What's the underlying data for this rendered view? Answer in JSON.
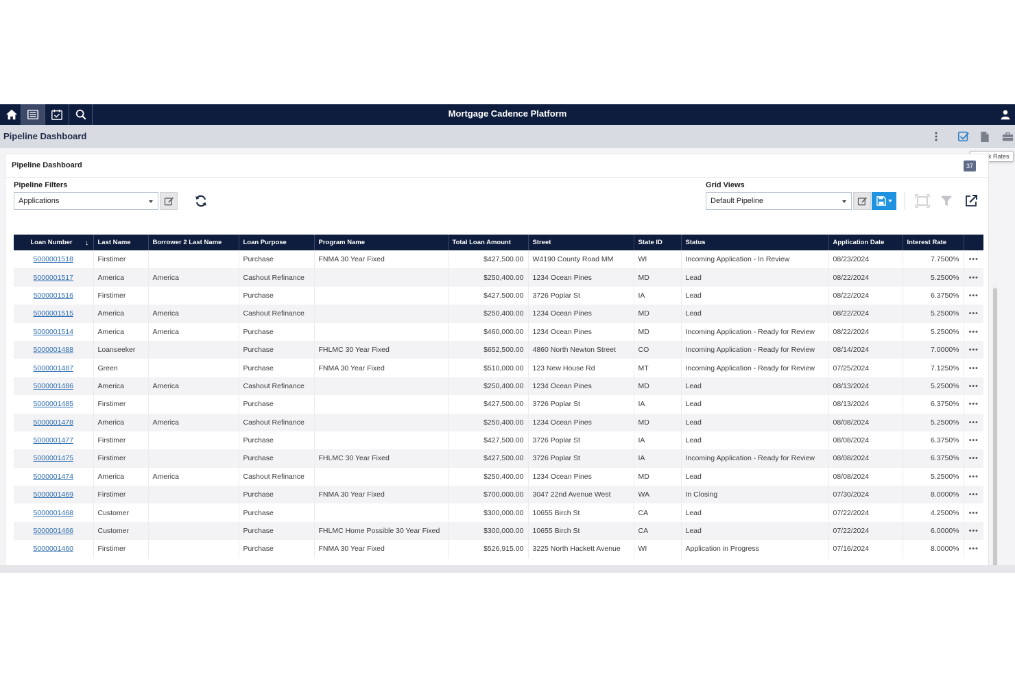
{
  "app": {
    "title": "Mortgage Cadence Platform",
    "nav_icons": [
      "home-icon",
      "list-icon",
      "calendar-check-icon",
      "search-icon"
    ]
  },
  "subbar": {
    "title": "Pipeline Dashboard",
    "icons": [
      "more-vertical-icon",
      "check-rates-icon",
      "document-icon",
      "briefcase-icon"
    ],
    "tooltip": "Check Rates"
  },
  "panel": {
    "title": "Pipeline Dashboard",
    "badge": "37"
  },
  "filters": {
    "label": "Pipeline Filters",
    "selected": "Applications"
  },
  "grid_views": {
    "label": "Grid Views",
    "selected": "Default Pipeline"
  },
  "table": {
    "columns": [
      "Loan Number",
      "Last Name",
      "Borrower 2 Last Name",
      "Loan Purpose",
      "Program Name",
      "Total Loan Amount",
      "Street",
      "State ID",
      "Status",
      "Application Date",
      "Interest Rate"
    ],
    "rows": [
      [
        "5000001518",
        "Firstimer",
        "",
        "Purchase",
        "FNMA 30 Year Fixed",
        "$427,500.00",
        "W4190 County Road MM",
        "WI",
        "Incoming Application - In Review",
        "08/23/2024",
        "7.7500%"
      ],
      [
        "5000001517",
        "America",
        "America",
        "Cashout Refinance",
        "",
        "$250,400.00",
        "1234 Ocean Pines",
        "MD",
        "Lead",
        "08/22/2024",
        "5.2500%"
      ],
      [
        "5000001516",
        "Firstimer",
        "",
        "Purchase",
        "",
        "$427,500.00",
        "3726 Poplar St",
        "IA",
        "Lead",
        "08/22/2024",
        "6.3750%"
      ],
      [
        "5000001515",
        "America",
        "America",
        "Cashout Refinance",
        "",
        "$250,400.00",
        "1234 Ocean Pines",
        "MD",
        "Lead",
        "08/22/2024",
        "5.2500%"
      ],
      [
        "5000001514",
        "America",
        "America",
        "Purchase",
        "",
        "$460,000.00",
        "1234 Ocean Pines",
        "MD",
        "Incoming Application - Ready for Review",
        "08/22/2024",
        "5.2500%"
      ],
      [
        "5000001488",
        "Loanseeker",
        "",
        "Purchase",
        "FHLMC 30 Year Fixed",
        "$652,500.00",
        "4860 North Newton Street",
        "CO",
        "Incoming Application - Ready for Review",
        "08/14/2024",
        "7.0000%"
      ],
      [
        "5000001487",
        "Green",
        "",
        "Purchase",
        "FNMA 30 Year Fixed",
        "$510,000.00",
        "123 New House Rd",
        "MT",
        "Incoming Application - Ready for Review",
        "07/25/2024",
        "7.1250%"
      ],
      [
        "5000001486",
        "America",
        "America",
        "Cashout Refinance",
        "",
        "$250,400.00",
        "1234 Ocean Pines",
        "MD",
        "Lead",
        "08/13/2024",
        "5.2500%"
      ],
      [
        "5000001485",
        "Firstimer",
        "",
        "Purchase",
        "",
        "$427,500.00",
        "3726 Poplar St",
        "IA",
        "Lead",
        "08/13/2024",
        "6.3750%"
      ],
      [
        "5000001478",
        "America",
        "America",
        "Cashout Refinance",
        "",
        "$250,400.00",
        "1234 Ocean Pines",
        "MD",
        "Lead",
        "08/08/2024",
        "5.2500%"
      ],
      [
        "5000001477",
        "Firstimer",
        "",
        "Purchase",
        "",
        "$427,500.00",
        "3726 Poplar St",
        "IA",
        "Lead",
        "08/08/2024",
        "6.3750%"
      ],
      [
        "5000001475",
        "Firstimer",
        "",
        "Purchase",
        "FHLMC 30 Year Fixed",
        "$427,500.00",
        "3726 Poplar St",
        "IA",
        "Incoming Application - Ready for Review",
        "08/08/2024",
        "6.3750%"
      ],
      [
        "5000001474",
        "America",
        "America",
        "Cashout Refinance",
        "",
        "$250,400.00",
        "1234 Ocean Pines",
        "MD",
        "Lead",
        "08/08/2024",
        "5.2500%"
      ],
      [
        "5000001469",
        "Firstimer",
        "",
        "Purchase",
        "FNMA 30 Year Fixed",
        "$700,000.00",
        "3047 22nd Avenue West",
        "WA",
        "In Closing",
        "07/30/2024",
        "8.0000%"
      ],
      [
        "5000001468",
        "Customer",
        "",
        "Purchase",
        "",
        "$300,000.00",
        "10655 Birch St",
        "CA",
        "Lead",
        "07/22/2024",
        "4.2500%"
      ],
      [
        "5000001466",
        "Customer",
        "",
        "Purchase",
        "FHLMC Home Possible 30 Year Fixed",
        "$300,000.00",
        "10655 Birch St",
        "CA",
        "Lead",
        "07/22/2024",
        "6.0000%"
      ],
      [
        "5000001460",
        "Firstimer",
        "",
        "Purchase",
        "FNMA 30 Year Fixed",
        "$526,915.00",
        "3225 North Hackett Avenue",
        "WI",
        "Application in Progress",
        "07/16/2024",
        "8.0000%"
      ]
    ],
    "row_menu": "•••"
  },
  "colors": {
    "nav_bg": "#0e1d3d",
    "subbar_bg": "#d9dbe2",
    "link": "#2b6cb0",
    "save_button": "#1f92e0"
  }
}
